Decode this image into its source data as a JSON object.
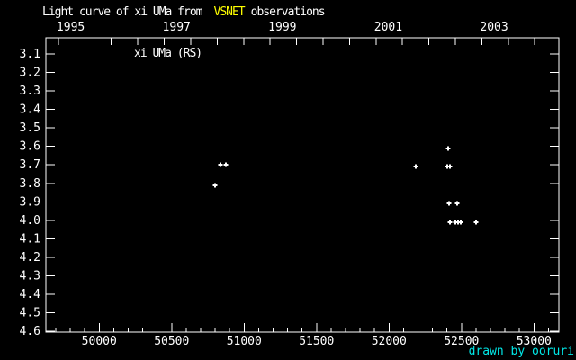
{
  "title": {
    "prefix": "Light curve of xi UMa from",
    "source": "VSNET",
    "suffix": "observations"
  },
  "series_label": "xi UMa (RS)",
  "credit": "drawn by ooruri",
  "colors": {
    "background": "#000000",
    "axis": "#ffffff",
    "text": "#ffffff",
    "source_highlight": "#ffff00",
    "credit": "#00e8e8",
    "marker": "#ffffff"
  },
  "chart_data": {
    "type": "scatter",
    "title": "Light curve of xi UMa from VSNET observations",
    "series_name": "xi UMa (RS)",
    "marker_style": "plus",
    "grid": false,
    "x_axis": {
      "min": 49632,
      "max": 53172,
      "major_ticks": [
        50000,
        50500,
        51000,
        51500,
        52000,
        52500,
        53000
      ],
      "major_tick_labels": [
        "50000",
        "50500",
        "51000",
        "51500",
        "52000",
        "52500",
        "53000"
      ],
      "minor_tick_step": 100
    },
    "x2_axis": {
      "labeled_years": [
        1995,
        1997,
        1999,
        2001,
        2003
      ],
      "tick_step_years": 0.5,
      "first_tick_year": 1995,
      "last_tick_year": 2004,
      "jd_of_1995": 49718.5,
      "days_per_year": 365.25
    },
    "y_axis": {
      "min": 3.012,
      "max": 4.605,
      "ticks": [
        3.1,
        3.2,
        3.3,
        3.4,
        3.5,
        3.6,
        3.7,
        3.8,
        3.9,
        4.0,
        4.1,
        4.2,
        4.3,
        4.4,
        4.5,
        4.6
      ],
      "direction": "magnitude-down"
    },
    "points": [
      [
        50800,
        3.81
      ],
      [
        50837,
        3.7
      ],
      [
        50874,
        3.7
      ],
      [
        52185,
        3.71
      ],
      [
        52402,
        3.71
      ],
      [
        52408,
        3.61
      ],
      [
        52421,
        3.71
      ],
      [
        52415,
        3.91
      ],
      [
        52470,
        3.91
      ],
      [
        52421,
        4.01
      ],
      [
        52458,
        4.01
      ],
      [
        52477,
        4.01
      ],
      [
        52495,
        4.01
      ],
      [
        52601,
        4.01
      ]
    ]
  }
}
